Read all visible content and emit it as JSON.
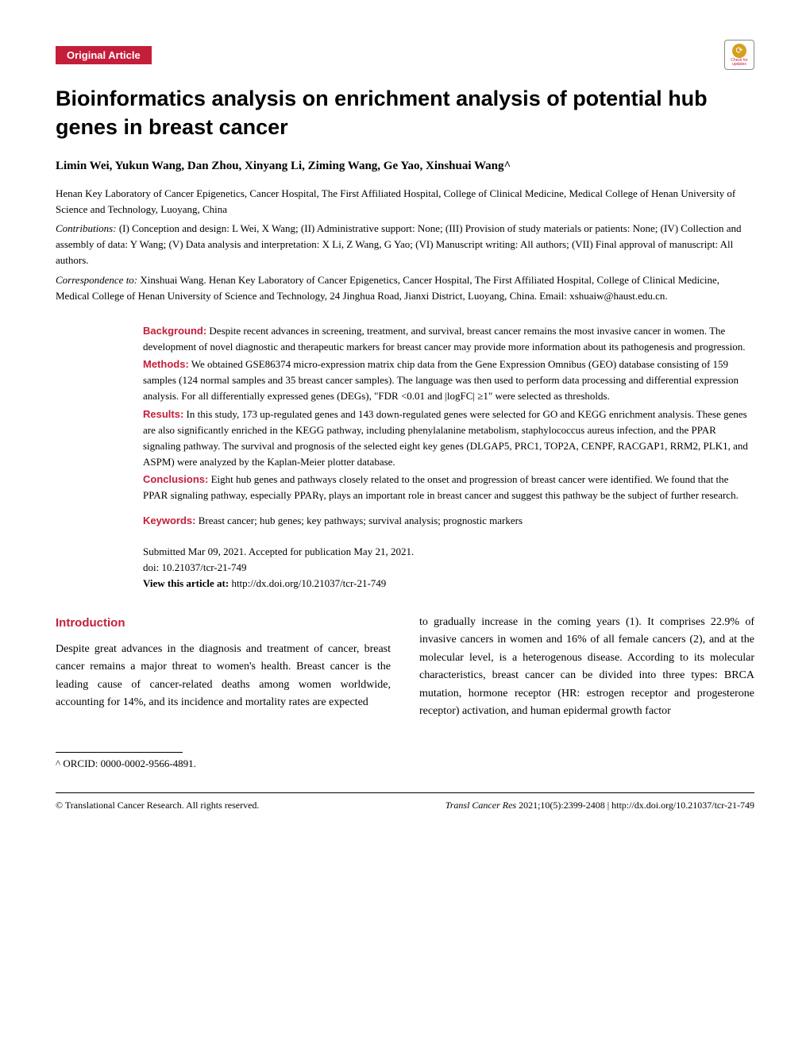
{
  "category_label": "Original Article",
  "badge_icon": {
    "symbol": "⊙",
    "text": "Check for updates"
  },
  "title": "Bioinformatics analysis on enrichment analysis of potential hub genes in breast cancer",
  "authors": "Limin Wei, Yukun Wang, Dan Zhou, Xinyang Li, Ziming Wang, Ge Yao, Xinshuai Wang^",
  "affiliation": "Henan Key Laboratory of Cancer Epigenetics, Cancer Hospital, The First Affiliated Hospital, College of Clinical Medicine, Medical College of Henan University of Science and Technology, Luoyang, China",
  "contributions_label": "Contributions:",
  "contributions": " (I) Conception and design: L Wei, X Wang; (II) Administrative support: None; (III) Provision of study materials or patients: None; (IV) Collection and assembly of data: Y Wang; (V) Data analysis and interpretation: X Li, Z Wang, G Yao; (VI) Manuscript writing: All authors; (VII) Final approval of manuscript: All authors.",
  "correspondence_label": "Correspondence to:",
  "correspondence": " Xinshuai Wang. Henan Key Laboratory of Cancer Epigenetics, Cancer Hospital, The First Affiliated Hospital, College of Clinical Medicine, Medical College of Henan University of Science and Technology, 24 Jinghua Road, Jianxi District, Luoyang, China. Email: xshuaiw@haust.edu.cn.",
  "abstract": {
    "background_label": "Background:",
    "background": " Despite recent advances in screening, treatment, and survival, breast cancer remains the most invasive cancer in women. The development of novel diagnostic and therapeutic markers for breast cancer may provide more information about its pathogenesis and progression.",
    "methods_label": "Methods:",
    "methods": " We obtained GSE86374 micro-expression matrix chip data from the Gene Expression Omnibus (GEO) database consisting of 159 samples (124 normal samples and 35 breast cancer samples). The language was then used to perform data processing and differential expression analysis. For all differentially expressed genes (DEGs), \"FDR <0.01 and |logFC| ≥1\" were selected as thresholds.",
    "results_label": "Results:",
    "results": " In this study, 173 up-regulated genes and 143 down-regulated genes were selected for GO and KEGG enrichment analysis. These genes are also significantly enriched in the KEGG pathway, including phenylalanine metabolism, staphylococcus aureus infection, and the PPAR signaling pathway. The survival and prognosis of the selected eight key genes (DLGAP5, PRC1, TOP2A, CENPF, RACGAP1, RRM2, PLK1, and ASPM) were analyzed by the Kaplan-Meier plotter database.",
    "conclusions_label": "Conclusions:",
    "conclusions": " Eight hub genes and pathways closely related to the onset and progression of breast cancer were identified. We found that the PPAR signaling pathway, especially PPARγ, plays an important role in breast cancer and suggest this pathway be the subject of further research."
  },
  "keywords_label": "Keywords:",
  "keywords": " Breast cancer; hub genes; key pathways; survival analysis; prognostic markers",
  "submission": "Submitted Mar 09, 2021. Accepted for publication May 21, 2021.",
  "doi": "doi: 10.21037/tcr-21-749",
  "view_label": "View this article at: ",
  "view_url": "http://dx.doi.org/10.21037/tcr-21-749",
  "section_heading": "Introduction",
  "body_col1": "Despite great advances in the diagnosis and treatment of cancer, breast cancer remains a major threat to women's health. Breast cancer is the leading cause of cancer-related deaths among women worldwide, accounting for 14%, and its incidence and mortality rates are expected",
  "body_col2": "to gradually increase in the coming years (1). It comprises 22.9% of invasive cancers in women and 16% of all female cancers (2), and at the molecular level, is a heterogenous disease. According to its molecular characteristics, breast cancer can be divided into three types: BRCA mutation, hormone receptor (HR: estrogen receptor and progesterone receptor) activation, and human epidermal growth factor",
  "footnote": "^ ORCID: 0000-0002-9566-4891.",
  "footer": {
    "copyright": "© Translational Cancer Research. All rights reserved.",
    "journal": "Transl Cancer Res",
    "citation": " 2021;10(5):2399-2408 | http://dx.doi.org/10.21037/tcr-21-749"
  },
  "colors": {
    "brand_red": "#c41e3a",
    "text": "#000000",
    "background": "#ffffff"
  },
  "typography": {
    "title_fontsize": 27,
    "body_fontsize": 14,
    "meta_fontsize": 13,
    "footer_fontsize": 12
  }
}
